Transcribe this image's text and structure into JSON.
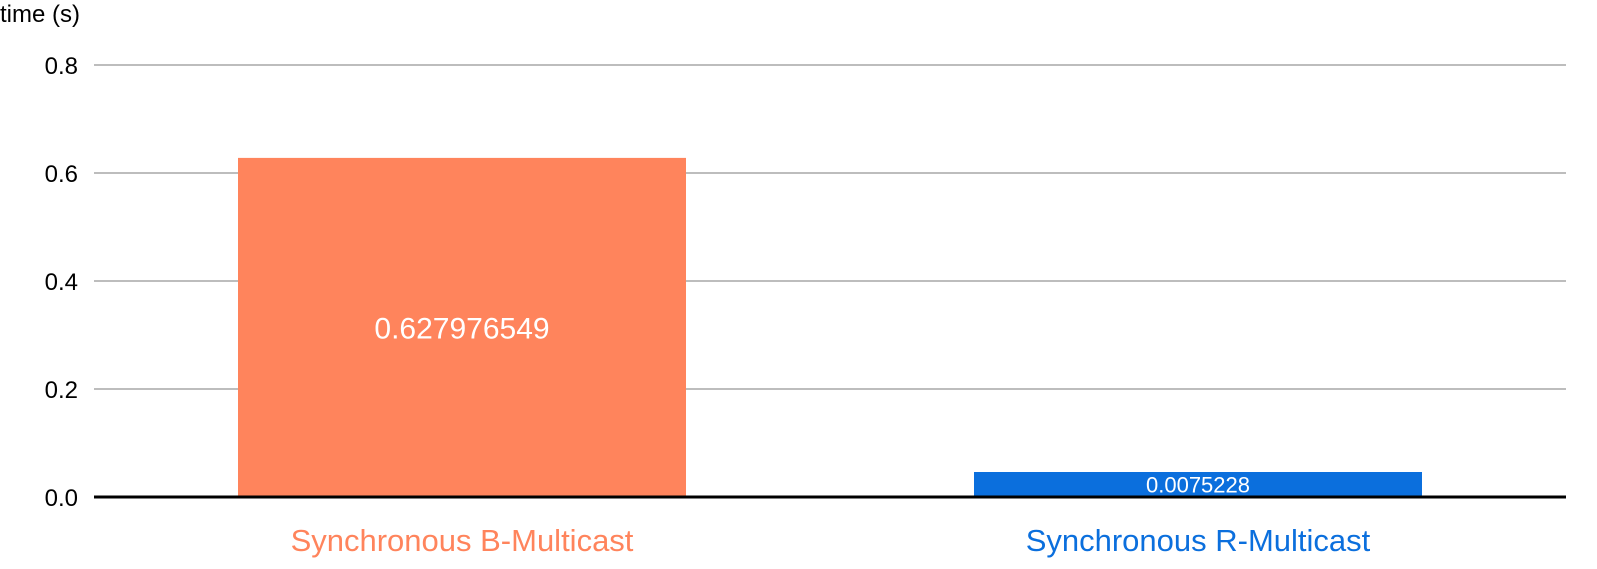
{
  "chart_data": {
    "type": "bar",
    "title": "",
    "ylabel": "time (s)",
    "xlabel": "",
    "ylim": [
      0,
      0.8
    ],
    "yticks": [
      0.0,
      0.2,
      0.4,
      0.6,
      0.8
    ],
    "ytick_labels": [
      "0.0",
      "0.2",
      "0.4",
      "0.6",
      "0.8"
    ],
    "categories": [
      "Synchronous B-Multicast",
      "Synchronous R-Multicast"
    ],
    "values": [
      0.627976549,
      0.0075228
    ],
    "data_labels": [
      "0.627976549",
      "0.0075228"
    ],
    "colors": [
      "#ff845c",
      "#0b6fdd"
    ],
    "grid": true,
    "legend": "none"
  }
}
